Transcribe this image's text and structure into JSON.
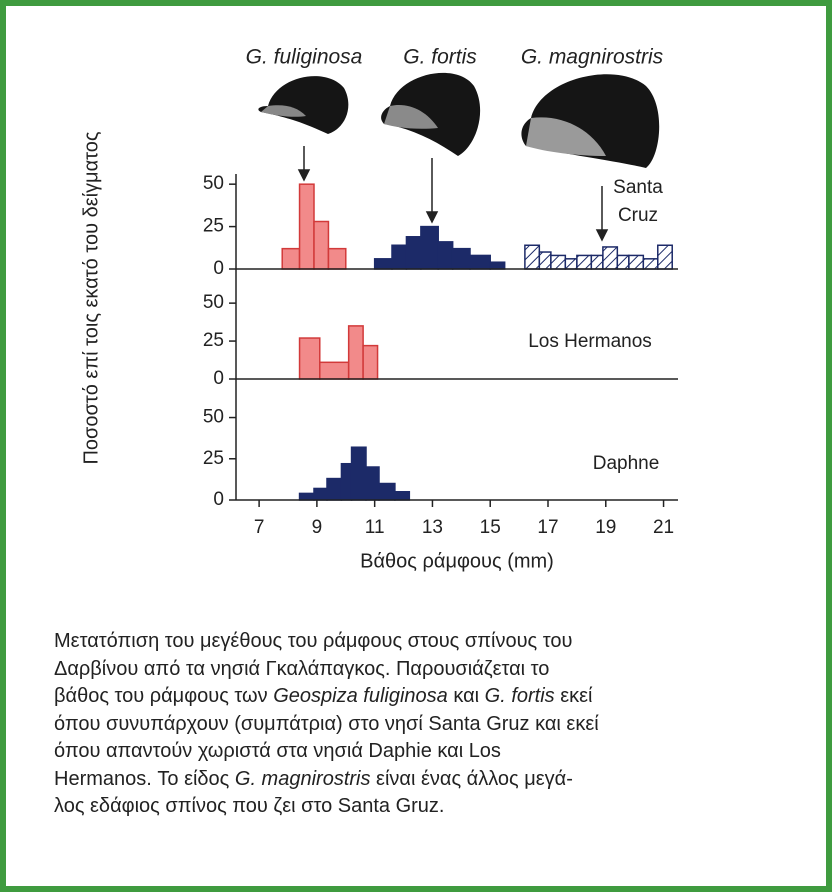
{
  "chart_data": [
    {
      "type": "histogram",
      "title": [
        "Santa",
        "Cruz"
      ],
      "ylabel": "Ποσοστό επί τοις εκατό του δείγματος",
      "ylim": [
        0,
        56
      ],
      "yticks": [
        0,
        25,
        50
      ],
      "series": [
        {
          "name": "G. fuliginosa",
          "color": "#f28a8a",
          "bins": [
            7.8,
            8.4,
            8.9,
            9.4,
            10.0
          ],
          "values": [
            12,
            50,
            28,
            12
          ]
        },
        {
          "name": "G. fortis",
          "color": "#1c2a68",
          "bins": [
            11.0,
            11.6,
            12.1,
            12.6,
            13.2,
            13.7,
            14.3,
            15.0,
            15.5
          ],
          "values": [
            6,
            14,
            19,
            25,
            16,
            12,
            8,
            4
          ]
        },
        {
          "name": "G. magnirostris",
          "color": "#1c2a68",
          "hatch": true,
          "bins": [
            16.2,
            16.7,
            17.1,
            17.6,
            18.0,
            18.5,
            18.9,
            19.4,
            19.8,
            20.3,
            20.8,
            21.3
          ],
          "values": [
            14,
            10,
            8,
            6,
            8,
            8,
            13,
            8,
            8,
            6,
            14
          ]
        }
      ]
    },
    {
      "type": "histogram",
      "title": [
        "Los Hermanos"
      ],
      "ylim": [
        0,
        58
      ],
      "yticks": [
        0,
        25,
        50
      ],
      "series": [
        {
          "color": "#f28a8a",
          "bins": [
            8.4,
            9.1,
            10.1,
            10.6,
            11.1
          ],
          "values": [
            27,
            11,
            35,
            22
          ]
        }
      ]
    },
    {
      "type": "histogram",
      "title": [
        "Daphne"
      ],
      "ylim": [
        0,
        57
      ],
      "yticks": [
        0,
        25,
        50
      ],
      "xlabel": "Βάθος ράμφους (mm)",
      "xlim": [
        6.2,
        21.5
      ],
      "xticks": [
        7,
        9,
        11,
        13,
        15,
        17,
        19,
        21
      ],
      "series": [
        {
          "color": "#1c2a68",
          "bins": [
            8.4,
            8.9,
            9.35,
            9.85,
            10.2,
            10.7,
            11.15,
            11.7,
            12.2
          ],
          "values": [
            4,
            7,
            13,
            22,
            32,
            20,
            10,
            5
          ]
        }
      ]
    }
  ],
  "caption": [
    [
      {
        "text": "Μετατόπιση του μεγέθους του ράμφους στους σπίνους του"
      }
    ],
    [
      {
        "text": "Δαρβίνου από τα νησιά Γκαλάπαγκος. Παρουσιάζεται το"
      }
    ],
    [
      {
        "text": "βάθος του ράμφους των "
      },
      {
        "text": "Geospiza fuliginosa",
        "italic": true
      },
      {
        "text": " και "
      },
      {
        "text": "G. fortis",
        "italic": true
      },
      {
        "text": " εκεί"
      }
    ],
    [
      {
        "text": "όπου συνυπάρχουν (συμπάτρια) στο νησί Santa Gruz και εκεί"
      }
    ],
    [
      {
        "text": "όπου απαντούν χωριστά στα νησιά Daphie και Los"
      }
    ],
    [
      {
        "text": "Hermanos. Το είδος "
      },
      {
        "text": "G. magnirostris",
        "italic": true
      },
      {
        "text": " είναι ένας άλλος μεγά-"
      }
    ],
    [
      {
        "text": "λος εδάφιος σπίνος που ζει στο Santa Gruz."
      }
    ]
  ]
}
